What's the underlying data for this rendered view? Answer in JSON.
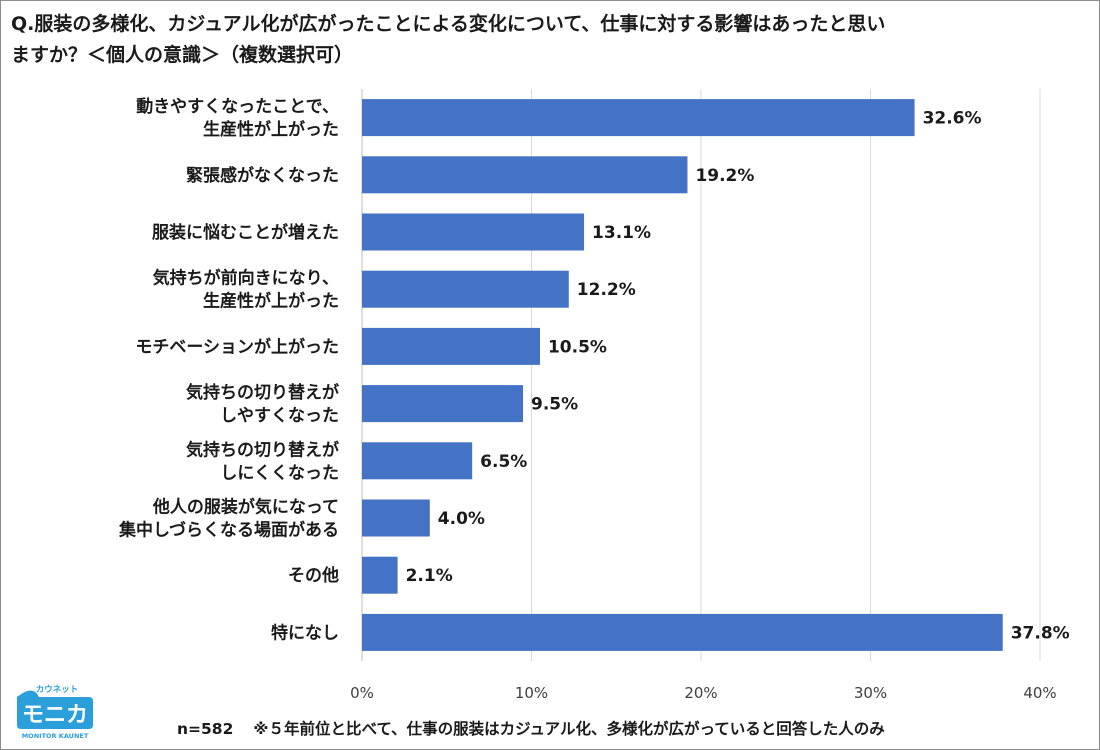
{
  "title": "Q.服装の多様化、カジュアル化が広がったことによる変化について、仕事に対する影響はあったと思いますか？＜個人の意識＞（複数選択可）",
  "footnote": {
    "sample": "n=582",
    "note": "※５年前位と比べて、仕事の服装はカジュアル化、多様化が広がっていると回答した人のみ"
  },
  "logo": {
    "brand": "モニカ",
    "kana": "カウネット",
    "sub": "MONITOR KAUNET",
    "color": "#2b9fd9"
  },
  "chart_data": {
    "type": "bar",
    "orientation": "horizontal",
    "categories": [
      [
        "動きやすくなったことで、",
        "生産性が上がった"
      ],
      [
        "緊張感がなくなった"
      ],
      [
        "服装に悩むことが増えた"
      ],
      [
        "気持ちが前向きになり、",
        "生産性が上がった"
      ],
      [
        "モチベーションが上がった"
      ],
      [
        "気持ちの切り替えが",
        "しやすくなった"
      ],
      [
        "気持ちの切り替えが",
        "しにくくなった"
      ],
      [
        "他人の服装が気になって",
        "集中しづらくなる場面がある"
      ],
      [
        "その他"
      ],
      [
        "特になし"
      ]
    ],
    "values": [
      32.6,
      19.2,
      13.1,
      12.2,
      10.5,
      9.5,
      6.5,
      4.0,
      2.1,
      37.8
    ],
    "value_labels": [
      "32.6%",
      "19.2%",
      "13.1%",
      "12.2%",
      "10.5%",
      "9.5%",
      "6.5%",
      "4.0%",
      "2.1%",
      "37.8%"
    ],
    "xlim": [
      0,
      40
    ],
    "xticks": [
      0,
      10,
      20,
      30,
      40
    ],
    "xtick_labels": [
      "0%",
      "10%",
      "20%",
      "30%",
      "40%"
    ],
    "grid": true,
    "bar_color": "#4472c4",
    "grid_color": "#d9d9d9"
  }
}
